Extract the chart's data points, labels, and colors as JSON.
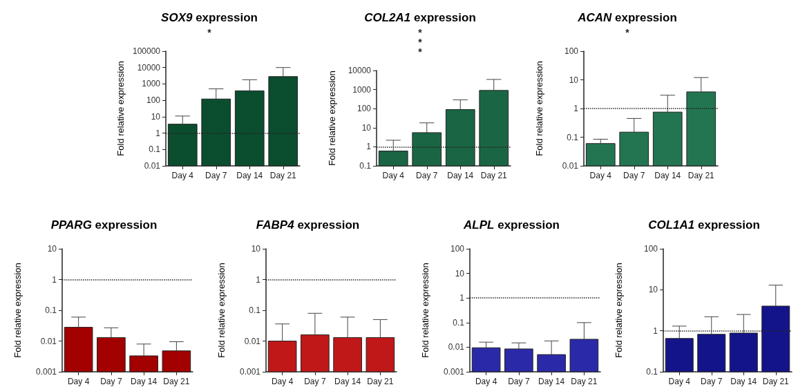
{
  "chart_data": [
    {
      "type": "bar",
      "title": "SOX9 expression",
      "ylabel": "Fold relative expression",
      "categories": [
        "Day 4",
        "Day 7",
        "Day 14",
        "Day 21"
      ],
      "color": "#0b4d2f",
      "values": [
        3.5,
        120,
        380,
        2800
      ],
      "errors": [
        [
          3.5,
          11
        ],
        [
          120,
          500
        ],
        [
          380,
          1800
        ],
        [
          2800,
          10000
        ]
      ],
      "log": "y",
      "ylim": [
        0.01,
        100000
      ],
      "yticks": [
        0.01,
        0.1,
        1,
        10,
        100,
        1000,
        10000,
        100000
      ],
      "grid": false,
      "ref_lines": [
        {
          "axis": "y",
          "value": 1,
          "line_style": "dotted"
        }
      ],
      "annotations": [
        "*"
      ]
    },
    {
      "type": "bar",
      "title": "COL2A1 expression",
      "ylabel": "Fold relative expression",
      "categories": [
        "Day 4",
        "Day 7",
        "Day 14",
        "Day 21"
      ],
      "color": "#1a6644",
      "values": [
        0.6,
        5.5,
        90,
        900
      ],
      "errors": [
        [
          0.6,
          2.2
        ],
        [
          5.5,
          18
        ],
        [
          90,
          290
        ],
        [
          900,
          3400
        ]
      ],
      "log": "y",
      "ylim": [
        0.1,
        10000
      ],
      "yticks": [
        0.1,
        1,
        10,
        100,
        1000,
        10000
      ],
      "grid": false,
      "ref_lines": [
        {
          "axis": "y",
          "value": 1,
          "line_style": "dotted"
        }
      ],
      "annotations": [
        "*",
        "*",
        "*"
      ]
    },
    {
      "type": "bar",
      "title": "ACAN expression",
      "ylabel": "Fold relative expression",
      "categories": [
        "Day 4",
        "Day 7",
        "Day 14",
        "Day 21"
      ],
      "color": "#237552",
      "values": [
        0.06,
        0.15,
        0.75,
        3.8
      ],
      "errors": [
        [
          0.06,
          0.085
        ],
        [
          0.15,
          0.45
        ],
        [
          0.75,
          2.9
        ],
        [
          3.8,
          12
        ]
      ],
      "log": "y",
      "ylim": [
        0.01,
        100
      ],
      "yticks": [
        0.01,
        0.1,
        1,
        10,
        100
      ],
      "grid": false,
      "ref_lines": [
        {
          "axis": "y",
          "value": 1,
          "line_style": "dotted"
        }
      ],
      "annotations": [
        "*"
      ]
    },
    {
      "type": "bar",
      "title": "PPARG expression",
      "ylabel": "Fold relative expression",
      "categories": [
        "Day 4",
        "Day 7",
        "Day 14",
        "Day 21"
      ],
      "color": "#a30000",
      "values": [
        0.028,
        0.013,
        0.0033,
        0.0048
      ],
      "errors": [
        [
          0.028,
          0.06
        ],
        [
          0.013,
          0.027
        ],
        [
          0.0033,
          0.008
        ],
        [
          0.0048,
          0.0095
        ]
      ],
      "log": "y",
      "ylim": [
        0.001,
        10
      ],
      "yticks": [
        0.001,
        0.01,
        0.1,
        1,
        10
      ],
      "grid": false,
      "ref_lines": [
        {
          "axis": "y",
          "value": 1,
          "line_style": "dotted"
        }
      ]
    },
    {
      "type": "bar",
      "title": "FABP4 expression",
      "ylabel": "Fold relative expression",
      "categories": [
        "Day 4",
        "Day 7",
        "Day 14",
        "Day 21"
      ],
      "color": "#c01818",
      "values": [
        0.01,
        0.016,
        0.013,
        0.013
      ],
      "errors": [
        [
          0.01,
          0.036
        ],
        [
          0.016,
          0.08
        ],
        [
          0.013,
          0.06
        ],
        [
          0.013,
          0.05
        ]
      ],
      "log": "y",
      "ylim": [
        0.001,
        10
      ],
      "yticks": [
        0.001,
        0.01,
        0.1,
        1,
        10
      ],
      "grid": false,
      "ref_lines": [
        {
          "axis": "y",
          "value": 1,
          "line_style": "dotted"
        }
      ]
    },
    {
      "type": "bar",
      "title": "ALPL expression",
      "ylabel": "Fold relative expression",
      "categories": [
        "Day 4",
        "Day 7",
        "Day 14",
        "Day 21"
      ],
      "color": "#2a2aa8",
      "values": [
        0.0095,
        0.0085,
        0.005,
        0.021
      ],
      "errors": [
        [
          0.0095,
          0.016
        ],
        [
          0.0085,
          0.015
        ],
        [
          0.005,
          0.018
        ],
        [
          0.021,
          0.1
        ]
      ],
      "log": "y",
      "ylim": [
        0.001,
        100
      ],
      "yticks": [
        0.001,
        0.01,
        0.1,
        1,
        10,
        100
      ],
      "grid": false,
      "ref_lines": [
        {
          "axis": "y",
          "value": 1,
          "line_style": "dotted"
        }
      ]
    },
    {
      "type": "bar",
      "title": "COL1A1 expression",
      "ylabel": "Fold relative expression",
      "categories": [
        "Day 4",
        "Day 7",
        "Day 14",
        "Day 21"
      ],
      "color": "#14148a",
      "values": [
        0.65,
        0.82,
        0.88,
        4
      ],
      "errors": [
        [
          0.65,
          1.3
        ],
        [
          0.82,
          2.2
        ],
        [
          0.88,
          2.5
        ],
        [
          4,
          13
        ]
      ],
      "log": "y",
      "ylim": [
        0.1,
        100
      ],
      "yticks": [
        0.1,
        1,
        10,
        100
      ],
      "grid": false,
      "ref_lines": [
        {
          "axis": "y",
          "value": 1,
          "line_style": "dotted"
        }
      ]
    }
  ]
}
